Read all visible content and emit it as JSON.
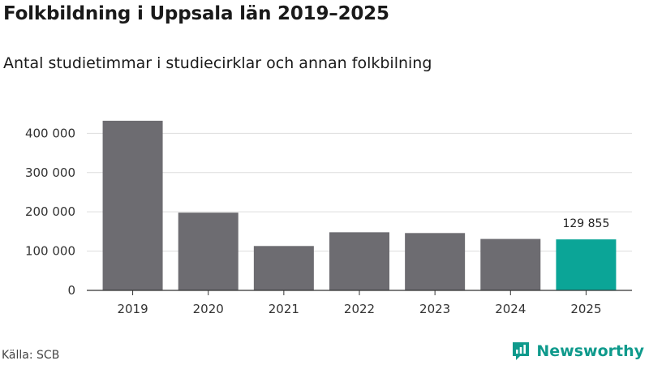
{
  "header": {
    "title": "Folkbildning i Uppsala län 2019–2025",
    "subtitle": "Antal studietimmar i studiecirklar och annan folkbilning"
  },
  "footer": {
    "source": "Källa: SCB",
    "brand": "Newsworthy"
  },
  "colors": {
    "bar": "#6d6c71",
    "highlight": "#0ba597",
    "grid": "#dddddd",
    "axis": "#333333",
    "brand": "#0f9a8c"
  },
  "chart_data": {
    "type": "bar",
    "title": "Folkbildning i Uppsala län 2019–2025",
    "subtitle": "Antal studietimmar i studiecirklar och annan folkbilning",
    "xlabel": "",
    "ylabel": "",
    "categories": [
      "2019",
      "2020",
      "2021",
      "2022",
      "2023",
      "2024",
      "2025"
    ],
    "values": [
      432000,
      198000,
      113000,
      148000,
      146000,
      131000,
      129855
    ],
    "highlight_index": 6,
    "data_labels": [
      {
        "index": 6,
        "text": "129 855"
      }
    ],
    "ylim": [
      0,
      440000
    ],
    "yticks": [
      0,
      100000,
      200000,
      300000,
      400000
    ],
    "ytick_labels": [
      "0",
      "100 000",
      "200 000",
      "300 000",
      "400 000"
    ],
    "grid": true
  }
}
